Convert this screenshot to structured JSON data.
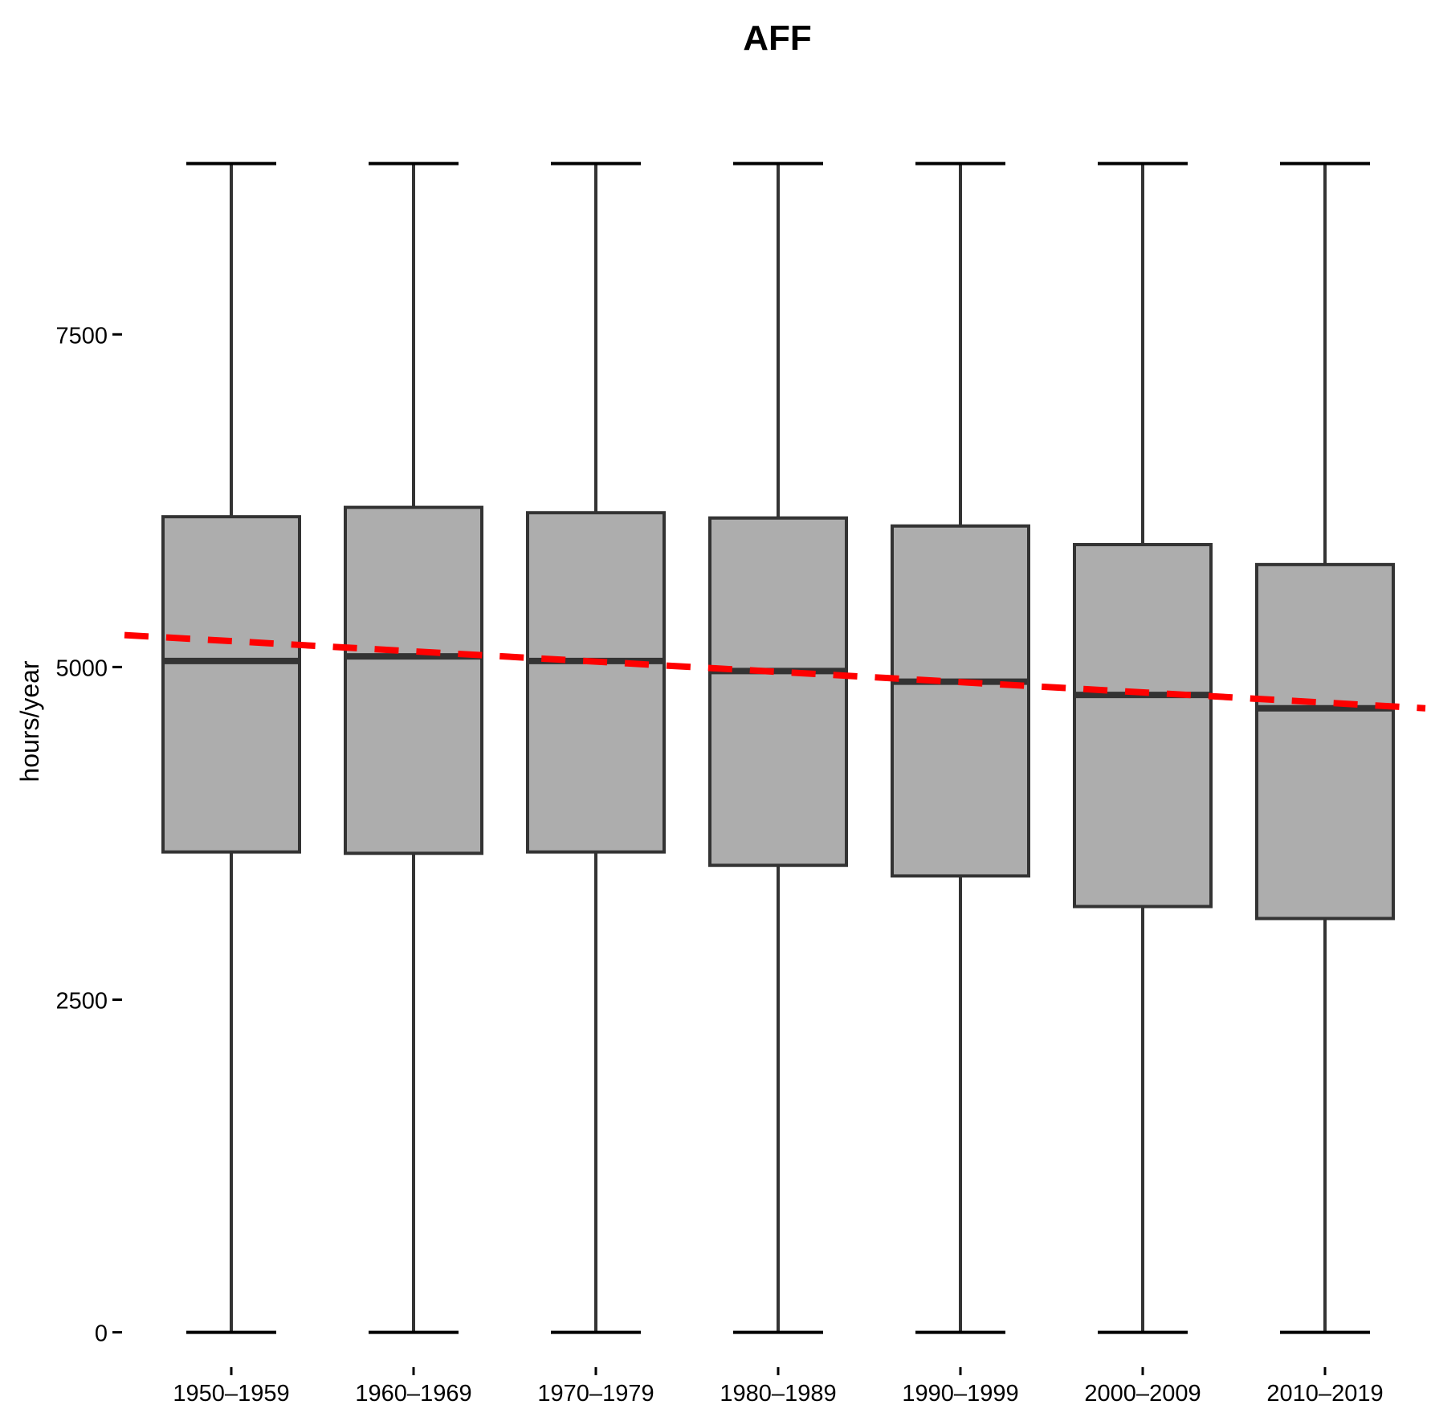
{
  "chart_data": {
    "type": "boxplot",
    "title": "AFF",
    "xlabel": "",
    "ylabel": "hours/year",
    "ylim": [
      -250,
      9500
    ],
    "yticks": [
      0,
      2500,
      5000,
      7500
    ],
    "grid": false,
    "legend": "none",
    "colors": {
      "box_fill": "#adadad",
      "box_stroke": "#333333",
      "whisker": "#333333",
      "cap": "#000000",
      "trend": "#ff0000"
    },
    "categories": [
      "1950–1959",
      "1960–1969",
      "1970–1979",
      "1980–1989",
      "1990–1999",
      "2000–2009",
      "2010–2019"
    ],
    "boxes": [
      {
        "min": 0,
        "q1": 3610,
        "median": 5045,
        "q3": 6130,
        "max": 8784
      },
      {
        "min": 0,
        "q1": 3600,
        "median": 5080,
        "q3": 6200,
        "max": 8784
      },
      {
        "min": 0,
        "q1": 3610,
        "median": 5045,
        "q3": 6160,
        "max": 8784
      },
      {
        "min": 0,
        "q1": 3510,
        "median": 4970,
        "q3": 6120,
        "max": 8784
      },
      {
        "min": 0,
        "q1": 3430,
        "median": 4890,
        "q3": 6060,
        "max": 8784
      },
      {
        "min": 0,
        "q1": 3200,
        "median": 4790,
        "q3": 5920,
        "max": 8784
      },
      {
        "min": 0,
        "q1": 3110,
        "median": 4690,
        "q3": 5770,
        "max": 8784
      }
    ],
    "trend_line": {
      "style": "dashed",
      "start": 5240,
      "end": 4690
    }
  }
}
